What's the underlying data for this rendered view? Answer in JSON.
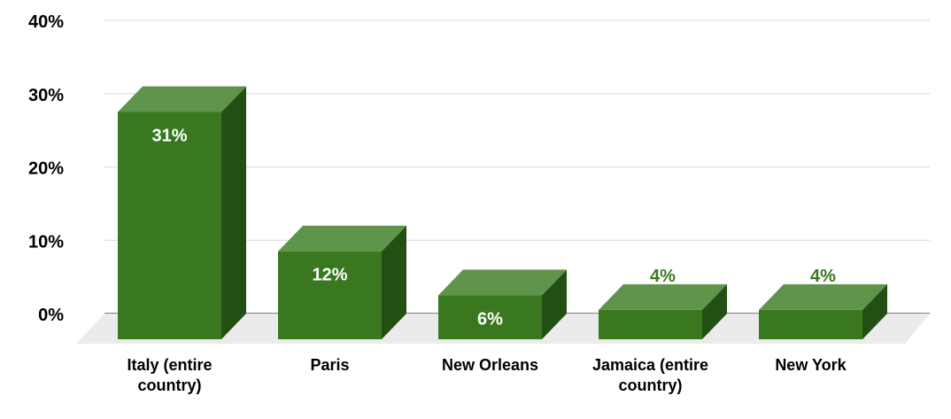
{
  "chart_data": {
    "type": "bar",
    "style": "3d",
    "categories": [
      "Italy (entire country)",
      "Paris",
      "New Orleans",
      "Jamaica (entire country)",
      "New York"
    ],
    "category_lines": [
      [
        "Italy (entire",
        "country)"
      ],
      [
        "Paris"
      ],
      [
        "New Orleans"
      ],
      [
        "Jamaica (entire",
        "country)"
      ],
      [
        "New York"
      ]
    ],
    "values": [
      31,
      12,
      6,
      4,
      4
    ],
    "data_labels": [
      "31%",
      "12%",
      "6%",
      "4%",
      "4%"
    ],
    "y_ticks": [
      0,
      10,
      20,
      30,
      40
    ],
    "y_tick_labels": [
      "0%",
      "10%",
      "20%",
      "30%",
      "40%"
    ],
    "ylim": [
      0,
      40
    ],
    "grid": true,
    "legend": "none",
    "colors": {
      "bar_front": "#3a781f",
      "bar_top": "#5f944b",
      "bar_side": "#244f14",
      "floor": "#ebebeb",
      "grid": "#d9d9d9",
      "label_inside": "#ffffff",
      "label_outside": "#3a781f"
    }
  }
}
